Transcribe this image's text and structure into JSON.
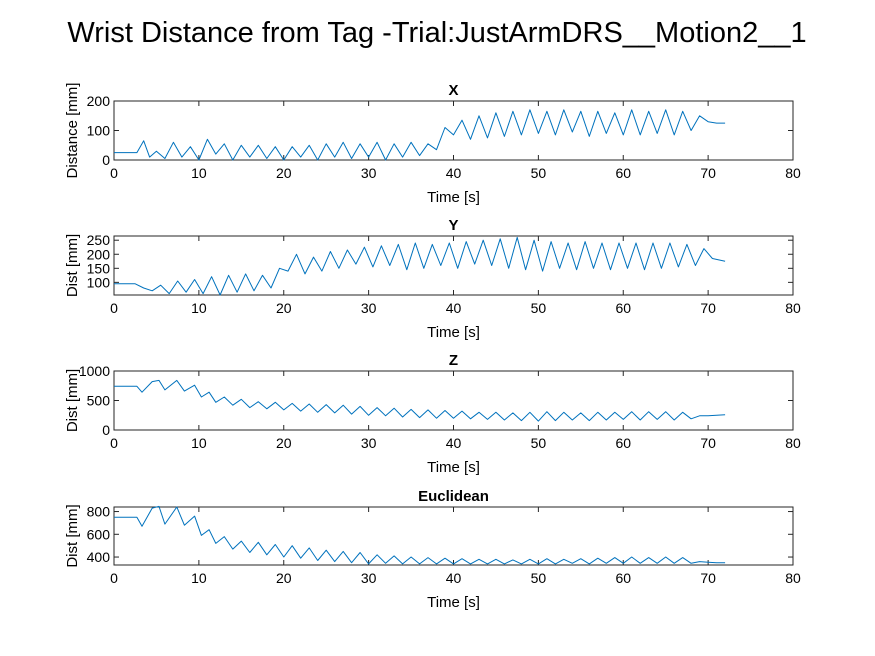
{
  "figure": {
    "title": "Wrist Distance from Tag -Trial:JustArmDRS__Motion2__1",
    "line_color": "#0072BD"
  },
  "chart_data": [
    {
      "type": "line",
      "title": "X",
      "xlabel": "Time [s]",
      "ylabel": "Distance [mm]",
      "xlim": [
        0,
        80
      ],
      "ylim": [
        0,
        200
      ],
      "xticks": [
        0,
        10,
        20,
        30,
        40,
        50,
        60,
        70,
        80
      ],
      "yticks": [
        0,
        100,
        200
      ],
      "grid": false,
      "series": [
        {
          "x": [
            0,
            2.7,
            3.5,
            4.2,
            5,
            6,
            7,
            8,
            9,
            10,
            11,
            12,
            13,
            14,
            15,
            16,
            17,
            18,
            19,
            20,
            21,
            22,
            23,
            24,
            25,
            26,
            27,
            28,
            29,
            30,
            31,
            32,
            33,
            34,
            35,
            36,
            37,
            38,
            39,
            40,
            41,
            42,
            43,
            44,
            45,
            46,
            47,
            48,
            49,
            50,
            51,
            52,
            53,
            54,
            55,
            56,
            57,
            58,
            59,
            60,
            61,
            62,
            63,
            64,
            65,
            66,
            67,
            68,
            69,
            70,
            71,
            72
          ],
          "y": [
            25,
            25,
            65,
            10,
            30,
            5,
            60,
            10,
            45,
            0,
            70,
            20,
            55,
            0,
            50,
            10,
            50,
            5,
            45,
            0,
            45,
            10,
            50,
            0,
            55,
            10,
            60,
            5,
            55,
            10,
            60,
            0,
            55,
            10,
            60,
            15,
            55,
            35,
            110,
            85,
            135,
            70,
            150,
            75,
            160,
            80,
            165,
            85,
            170,
            90,
            165,
            85,
            170,
            95,
            165,
            80,
            165,
            90,
            160,
            85,
            170,
            85,
            165,
            90,
            170,
            85,
            165,
            100,
            150,
            130,
            125,
            125
          ]
        }
      ]
    },
    {
      "type": "line",
      "title": "Y",
      "xlabel": "Time [s]",
      "ylabel": "Dist [mm]",
      "xlim": [
        0,
        80
      ],
      "ylim": [
        55,
        265
      ],
      "xticks": [
        0,
        10,
        20,
        30,
        40,
        50,
        60,
        70,
        80
      ],
      "yticks": [
        100,
        150,
        200,
        250
      ],
      "grid": false,
      "series": [
        {
          "x": [
            0,
            2.5,
            3.5,
            4.5,
            5.5,
            6.5,
            7.5,
            8.5,
            9.5,
            10.5,
            11.5,
            12.5,
            13.5,
            14.5,
            15.5,
            16.5,
            17.5,
            18.5,
            19.5,
            20.5,
            21.5,
            22.5,
            23.5,
            24.5,
            25.5,
            26.5,
            27.5,
            28.5,
            29.5,
            30.5,
            31.5,
            32.5,
            33.5,
            34.5,
            35.5,
            36.5,
            37.5,
            38.5,
            39.5,
            40.5,
            41.5,
            42.5,
            43.5,
            44.5,
            45.5,
            46.5,
            47.5,
            48.5,
            49.5,
            50.5,
            51.5,
            52.5,
            53.5,
            54.5,
            55.5,
            56.5,
            57.5,
            58.5,
            59.5,
            60.5,
            61.5,
            62.5,
            63.5,
            64.5,
            65.5,
            66.5,
            67.5,
            68.5,
            69.5,
            70.5,
            72
          ],
          "y": [
            95,
            95,
            80,
            70,
            90,
            60,
            105,
            65,
            110,
            60,
            120,
            55,
            125,
            65,
            130,
            70,
            125,
            80,
            150,
            140,
            200,
            130,
            190,
            140,
            210,
            150,
            215,
            165,
            225,
            155,
            230,
            160,
            235,
            145,
            240,
            150,
            235,
            160,
            240,
            150,
            245,
            165,
            250,
            160,
            255,
            150,
            260,
            145,
            250,
            140,
            245,
            150,
            240,
            145,
            245,
            150,
            240,
            145,
            240,
            150,
            240,
            145,
            240,
            150,
            240,
            155,
            235,
            160,
            220,
            185,
            175
          ]
        }
      ]
    },
    {
      "type": "line",
      "title": "Z",
      "xlabel": "Time [s]",
      "ylabel": "Dist [mm]",
      "xlim": [
        0,
        80
      ],
      "ylim": [
        0,
        1000
      ],
      "xticks": [
        0,
        10,
        20,
        30,
        40,
        50,
        60,
        70,
        80
      ],
      "yticks": [
        0,
        500,
        1000
      ],
      "grid": false,
      "series": [
        {
          "x": [
            0,
            2.7,
            3.3,
            4.5,
            5.3,
            6,
            7.4,
            8.3,
            9.5,
            10.3,
            11.2,
            12,
            13,
            14,
            15,
            16,
            17,
            18,
            19,
            20,
            21,
            22,
            23,
            24,
            25,
            26,
            27,
            28,
            29,
            30,
            31,
            32,
            33,
            34,
            35,
            36,
            37,
            38,
            39,
            40,
            41,
            42,
            43,
            44,
            45,
            46,
            47,
            48,
            49,
            50,
            51,
            52,
            53,
            54,
            55,
            56,
            57,
            58,
            59,
            60,
            61,
            62,
            63,
            64,
            65,
            66,
            67,
            68,
            69,
            70,
            71,
            72
          ],
          "y": [
            740,
            740,
            640,
            820,
            840,
            680,
            840,
            660,
            760,
            560,
            640,
            470,
            560,
            420,
            520,
            380,
            480,
            360,
            470,
            340,
            450,
            320,
            440,
            300,
            430,
            290,
            420,
            270,
            400,
            250,
            380,
            240,
            370,
            220,
            350,
            210,
            340,
            200,
            330,
            200,
            320,
            190,
            300,
            180,
            300,
            170,
            290,
            160,
            300,
            150,
            310,
            160,
            300,
            170,
            290,
            160,
            300,
            170,
            300,
            180,
            310,
            170,
            310,
            180,
            310,
            170,
            300,
            190,
            240,
            240,
            250,
            260
          ]
        }
      ]
    },
    {
      "type": "line",
      "title": "Euclidean",
      "xlabel": "Time [s]",
      "ylabel": "Dist [mm]",
      "xlim": [
        0,
        80
      ],
      "ylim": [
        330,
        840
      ],
      "xticks": [
        0,
        10,
        20,
        30,
        40,
        50,
        60,
        70,
        80
      ],
      "yticks": [
        400,
        600,
        800
      ],
      "grid": false,
      "series": [
        {
          "x": [
            0,
            2.7,
            3.3,
            4.5,
            5.3,
            6,
            7.4,
            8.3,
            9.5,
            10.3,
            11.2,
            12,
            13,
            14,
            15,
            16,
            17,
            18,
            19,
            20,
            21,
            22,
            23,
            24,
            25,
            26,
            27,
            28,
            29,
            30,
            31,
            32,
            33,
            34,
            35,
            36,
            37,
            38,
            39,
            40,
            41,
            42,
            43,
            44,
            45,
            46,
            47,
            48,
            49,
            50,
            51,
            52,
            53,
            54,
            55,
            56,
            57,
            58,
            59,
            60,
            61,
            62,
            63,
            64,
            65,
            66,
            67,
            68,
            69,
            70,
            71,
            72
          ],
          "y": [
            750,
            750,
            670,
            830,
            845,
            690,
            840,
            680,
            760,
            590,
            640,
            520,
            580,
            470,
            540,
            440,
            530,
            420,
            510,
            400,
            500,
            390,
            480,
            370,
            460,
            360,
            450,
            350,
            440,
            340,
            420,
            345,
            410,
            340,
            400,
            340,
            395,
            340,
            390,
            340,
            385,
            340,
            380,
            340,
            380,
            340,
            375,
            340,
            380,
            340,
            385,
            340,
            380,
            345,
            385,
            340,
            390,
            345,
            395,
            345,
            400,
            345,
            395,
            345,
            400,
            345,
            395,
            345,
            360,
            355,
            350,
            350
          ]
        }
      ]
    }
  ]
}
